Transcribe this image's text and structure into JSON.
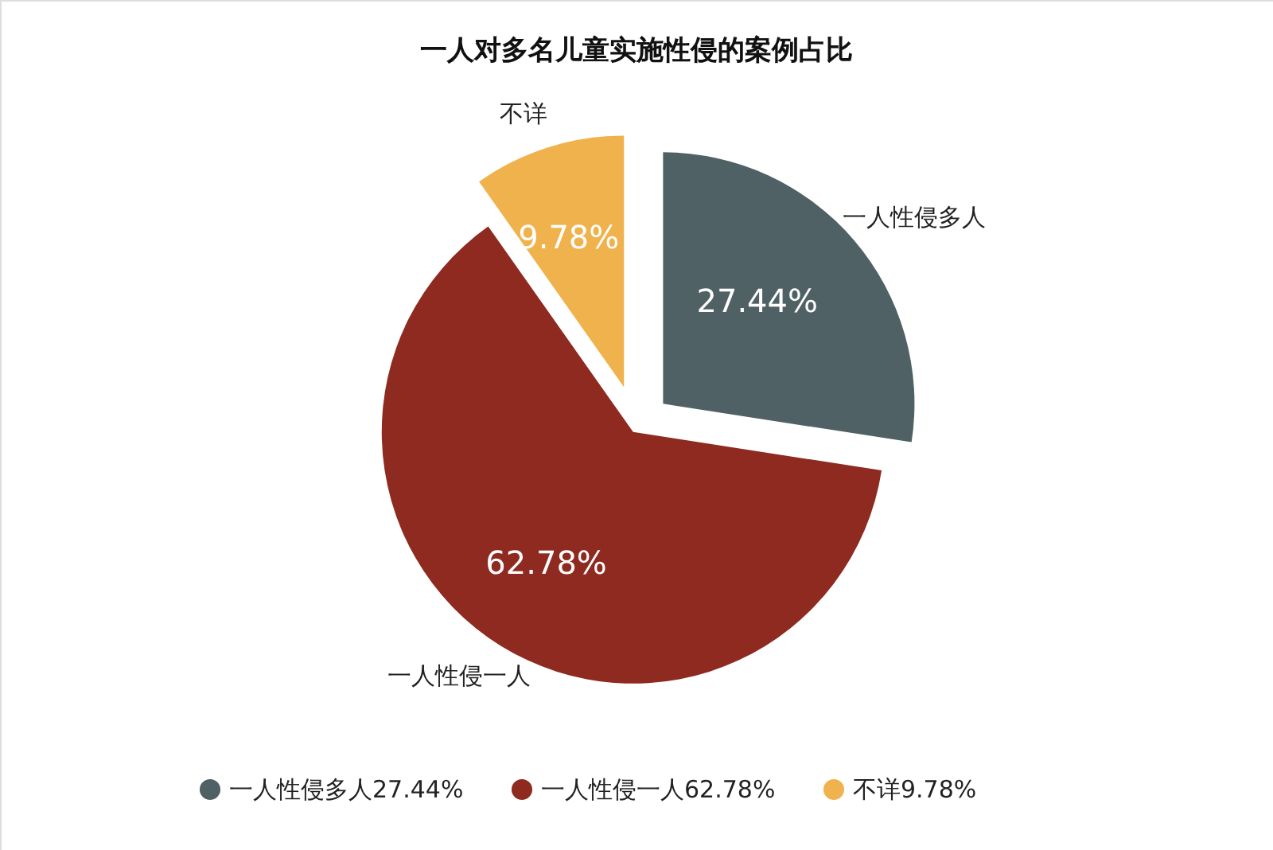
{
  "chart_data": {
    "type": "pie",
    "title": "一人对多名儿童实施性侵的案例占比",
    "categories": [
      "一人性侵多人",
      "一人性侵一人",
      "不详"
    ],
    "values": [
      27.44,
      62.78,
      9.78
    ],
    "value_labels": [
      "27.44%",
      "62.78%",
      "9.78%"
    ],
    "colors": [
      "#4f6164",
      "#8e2a1f",
      "#f0b24c"
    ],
    "data_labels": true,
    "legend": "bottom"
  }
}
